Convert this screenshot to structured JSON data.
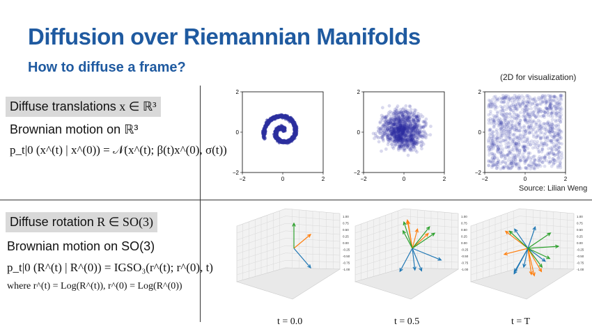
{
  "header": {
    "title": "Diffusion over Riemannian Manifolds",
    "subtitle": "How to diffuse a frame?",
    "note": "(2D for visualization)"
  },
  "translations": {
    "tag_text": "Diffuse translations",
    "tag_math": "x ∈ ℝ³",
    "brownian": "Brownian motion on ℝ³",
    "equation": "p_t|0 (x^(t) | x^(0)) = 𝒩(x^(t); β(t)x^(0), σ(t))",
    "source": "Source: Lilian Weng",
    "axis_ticks": {
      "x": [
        "−2",
        "0",
        "2"
      ],
      "y": [
        "2",
        "0",
        "−2"
      ]
    }
  },
  "rotations": {
    "tag_text": "Diffuse rotation",
    "tag_math": "R ∈ SO(3)",
    "brownian": "Brownian motion on SO(3)",
    "equation": "p_t|0 (R^(t) | R^(0)) = IGSO₃(r^(t); r^(0), t)",
    "where": "where r^(t) = Log(R^(t)), r^(0) = Log(R^(0))",
    "time_labels": [
      "t = 0.0",
      "t = 0.5",
      "t = T"
    ]
  },
  "colors": {
    "title": "#1f5aa0",
    "tag_bg": "#d9d9d9",
    "scatter": "#2b2f9e",
    "arrow_blue": "#1f77b4",
    "arrow_orange": "#ff7f0e",
    "arrow_green": "#2ca02c"
  }
}
